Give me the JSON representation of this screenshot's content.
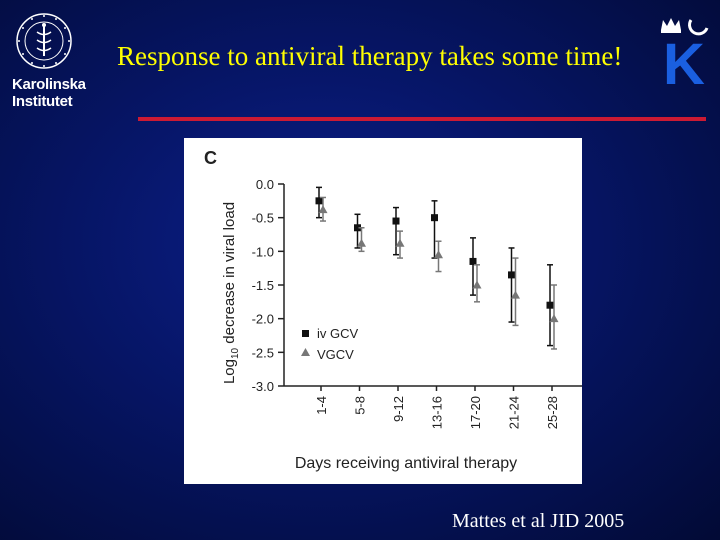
{
  "slide": {
    "title": "Response to antiviral therapy takes some time!",
    "citation": "Mattes et al JID 2005",
    "colors": {
      "background": "#061565",
      "title": "#ffff00",
      "rule": "#cc1a33",
      "citation": "#ffffff"
    }
  },
  "logos": {
    "left": {
      "text_line1": "Karolinska",
      "text_line2": "Institutet",
      "seal_text": "KAROLINSKA INSTITUTET ANNO 1810"
    },
    "right": {
      "letter": "K",
      "icon": "crown-icon"
    }
  },
  "chart_data": {
    "type": "scatter",
    "panel_label": "C",
    "xlabel": "Days receiving antiviral therapy",
    "ylabel_main": "Log",
    "ylabel_sub": "10",
    "ylabel_rest": " decrease in viral load",
    "categories": [
      "1-4",
      "5-8",
      "9-12",
      "13-16",
      "17-20",
      "21-24",
      "25-28"
    ],
    "yticks": [
      "0.0",
      "-0.5",
      "-1.0",
      "-1.5",
      "-2.0",
      "-2.5",
      "-3.0"
    ],
    "ylim": [
      -3.0,
      0.0
    ],
    "legend_position": "bottom-left",
    "series": [
      {
        "name": "iv GCV",
        "marker": "square",
        "color": "#111111",
        "values": [
          -0.25,
          -0.65,
          -0.55,
          -0.5,
          -1.15,
          -1.35,
          -1.8
        ],
        "err_low": [
          -0.5,
          -0.95,
          -1.05,
          -1.1,
          -1.65,
          -2.05,
          -2.4
        ],
        "err_high": [
          -0.05,
          -0.45,
          -0.35,
          -0.25,
          -0.8,
          -0.95,
          -1.2
        ]
      },
      {
        "name": "VGCV",
        "marker": "triangle",
        "color": "#777777",
        "values": [
          -0.38,
          -0.88,
          -0.88,
          -1.05,
          -1.5,
          -1.65,
          -2.0
        ],
        "err_low": [
          -0.55,
          -1.0,
          -1.1,
          -1.3,
          -1.75,
          -2.1,
          -2.45
        ],
        "err_high": [
          -0.2,
          -0.65,
          -0.7,
          -0.85,
          -1.2,
          -1.1,
          -1.5
        ]
      }
    ]
  }
}
